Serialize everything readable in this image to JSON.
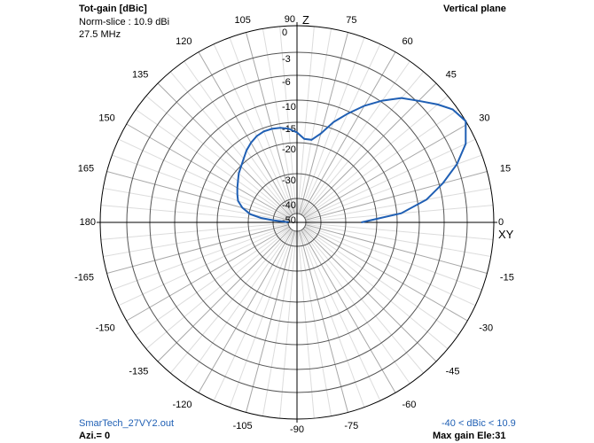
{
  "header": {
    "title": "Tot-gain [dBic]",
    "norm": "Norm-slice : 10.9 dBi",
    "freq": "27.5 MHz",
    "plane": "Vertical plane"
  },
  "footer": {
    "file": "SmarTech_27VY2.out",
    "azi": "Azi.= 0",
    "range": "-40 < dBic < 10.9",
    "maxgain": "Max gain Ele:31"
  },
  "chart_data": {
    "type": "polar",
    "title": "Tot-gain [dBic]",
    "radial_axis": {
      "unit": "dB",
      "scale": "log-compressed",
      "ticks": [
        0,
        -3,
        -6,
        -10,
        -15,
        -20,
        -30,
        -40,
        -50
      ],
      "labels": [
        "0",
        "-3",
        "-6",
        "-10",
        "-15",
        "-20",
        "-30",
        "-40",
        "-50"
      ]
    },
    "angular_axis": {
      "unit": "deg",
      "ticks": [
        90,
        75,
        60,
        45,
        30,
        15,
        0,
        -15,
        -30,
        -45,
        -60,
        -75,
        -90,
        -105,
        -120,
        -135,
        -150,
        -165,
        180,
        165,
        150,
        135,
        120,
        105
      ],
      "top_label": "Z",
      "right_label": "XY"
    },
    "series": [
      {
        "color": "#1f5fb4",
        "points": [
          [
            0,
            -25
          ],
          [
            5,
            -14
          ],
          [
            10,
            -8.5
          ],
          [
            15,
            -5.5
          ],
          [
            20,
            -3
          ],
          [
            25,
            -1.2
          ],
          [
            31,
            0
          ],
          [
            36,
            -0.5
          ],
          [
            40,
            -1.5
          ],
          [
            45,
            -2.8
          ],
          [
            50,
            -4
          ],
          [
            55,
            -5.8
          ],
          [
            60,
            -8
          ],
          [
            65,
            -10.5
          ],
          [
            70,
            -13.5
          ],
          [
            75,
            -17
          ],
          [
            80,
            -19
          ],
          [
            85,
            -19
          ],
          [
            90,
            -17.5
          ],
          [
            95,
            -16.5
          ],
          [
            100,
            -16
          ],
          [
            105,
            -15.8
          ],
          [
            110,
            -15.8
          ],
          [
            115,
            -16.2
          ],
          [
            120,
            -17
          ],
          [
            125,
            -18
          ],
          [
            130,
            -19.2
          ],
          [
            135,
            -20.2
          ],
          [
            140,
            -21.2
          ],
          [
            145,
            -22.5
          ],
          [
            150,
            -23.5
          ],
          [
            155,
            -24.5
          ],
          [
            160,
            -25.5
          ],
          [
            165,
            -27.5
          ],
          [
            170,
            -30.5
          ],
          [
            173,
            -35
          ],
          [
            175,
            -40
          ],
          [
            178,
            -50
          ],
          [
            180,
            -50
          ]
        ]
      }
    ],
    "grid": true
  }
}
